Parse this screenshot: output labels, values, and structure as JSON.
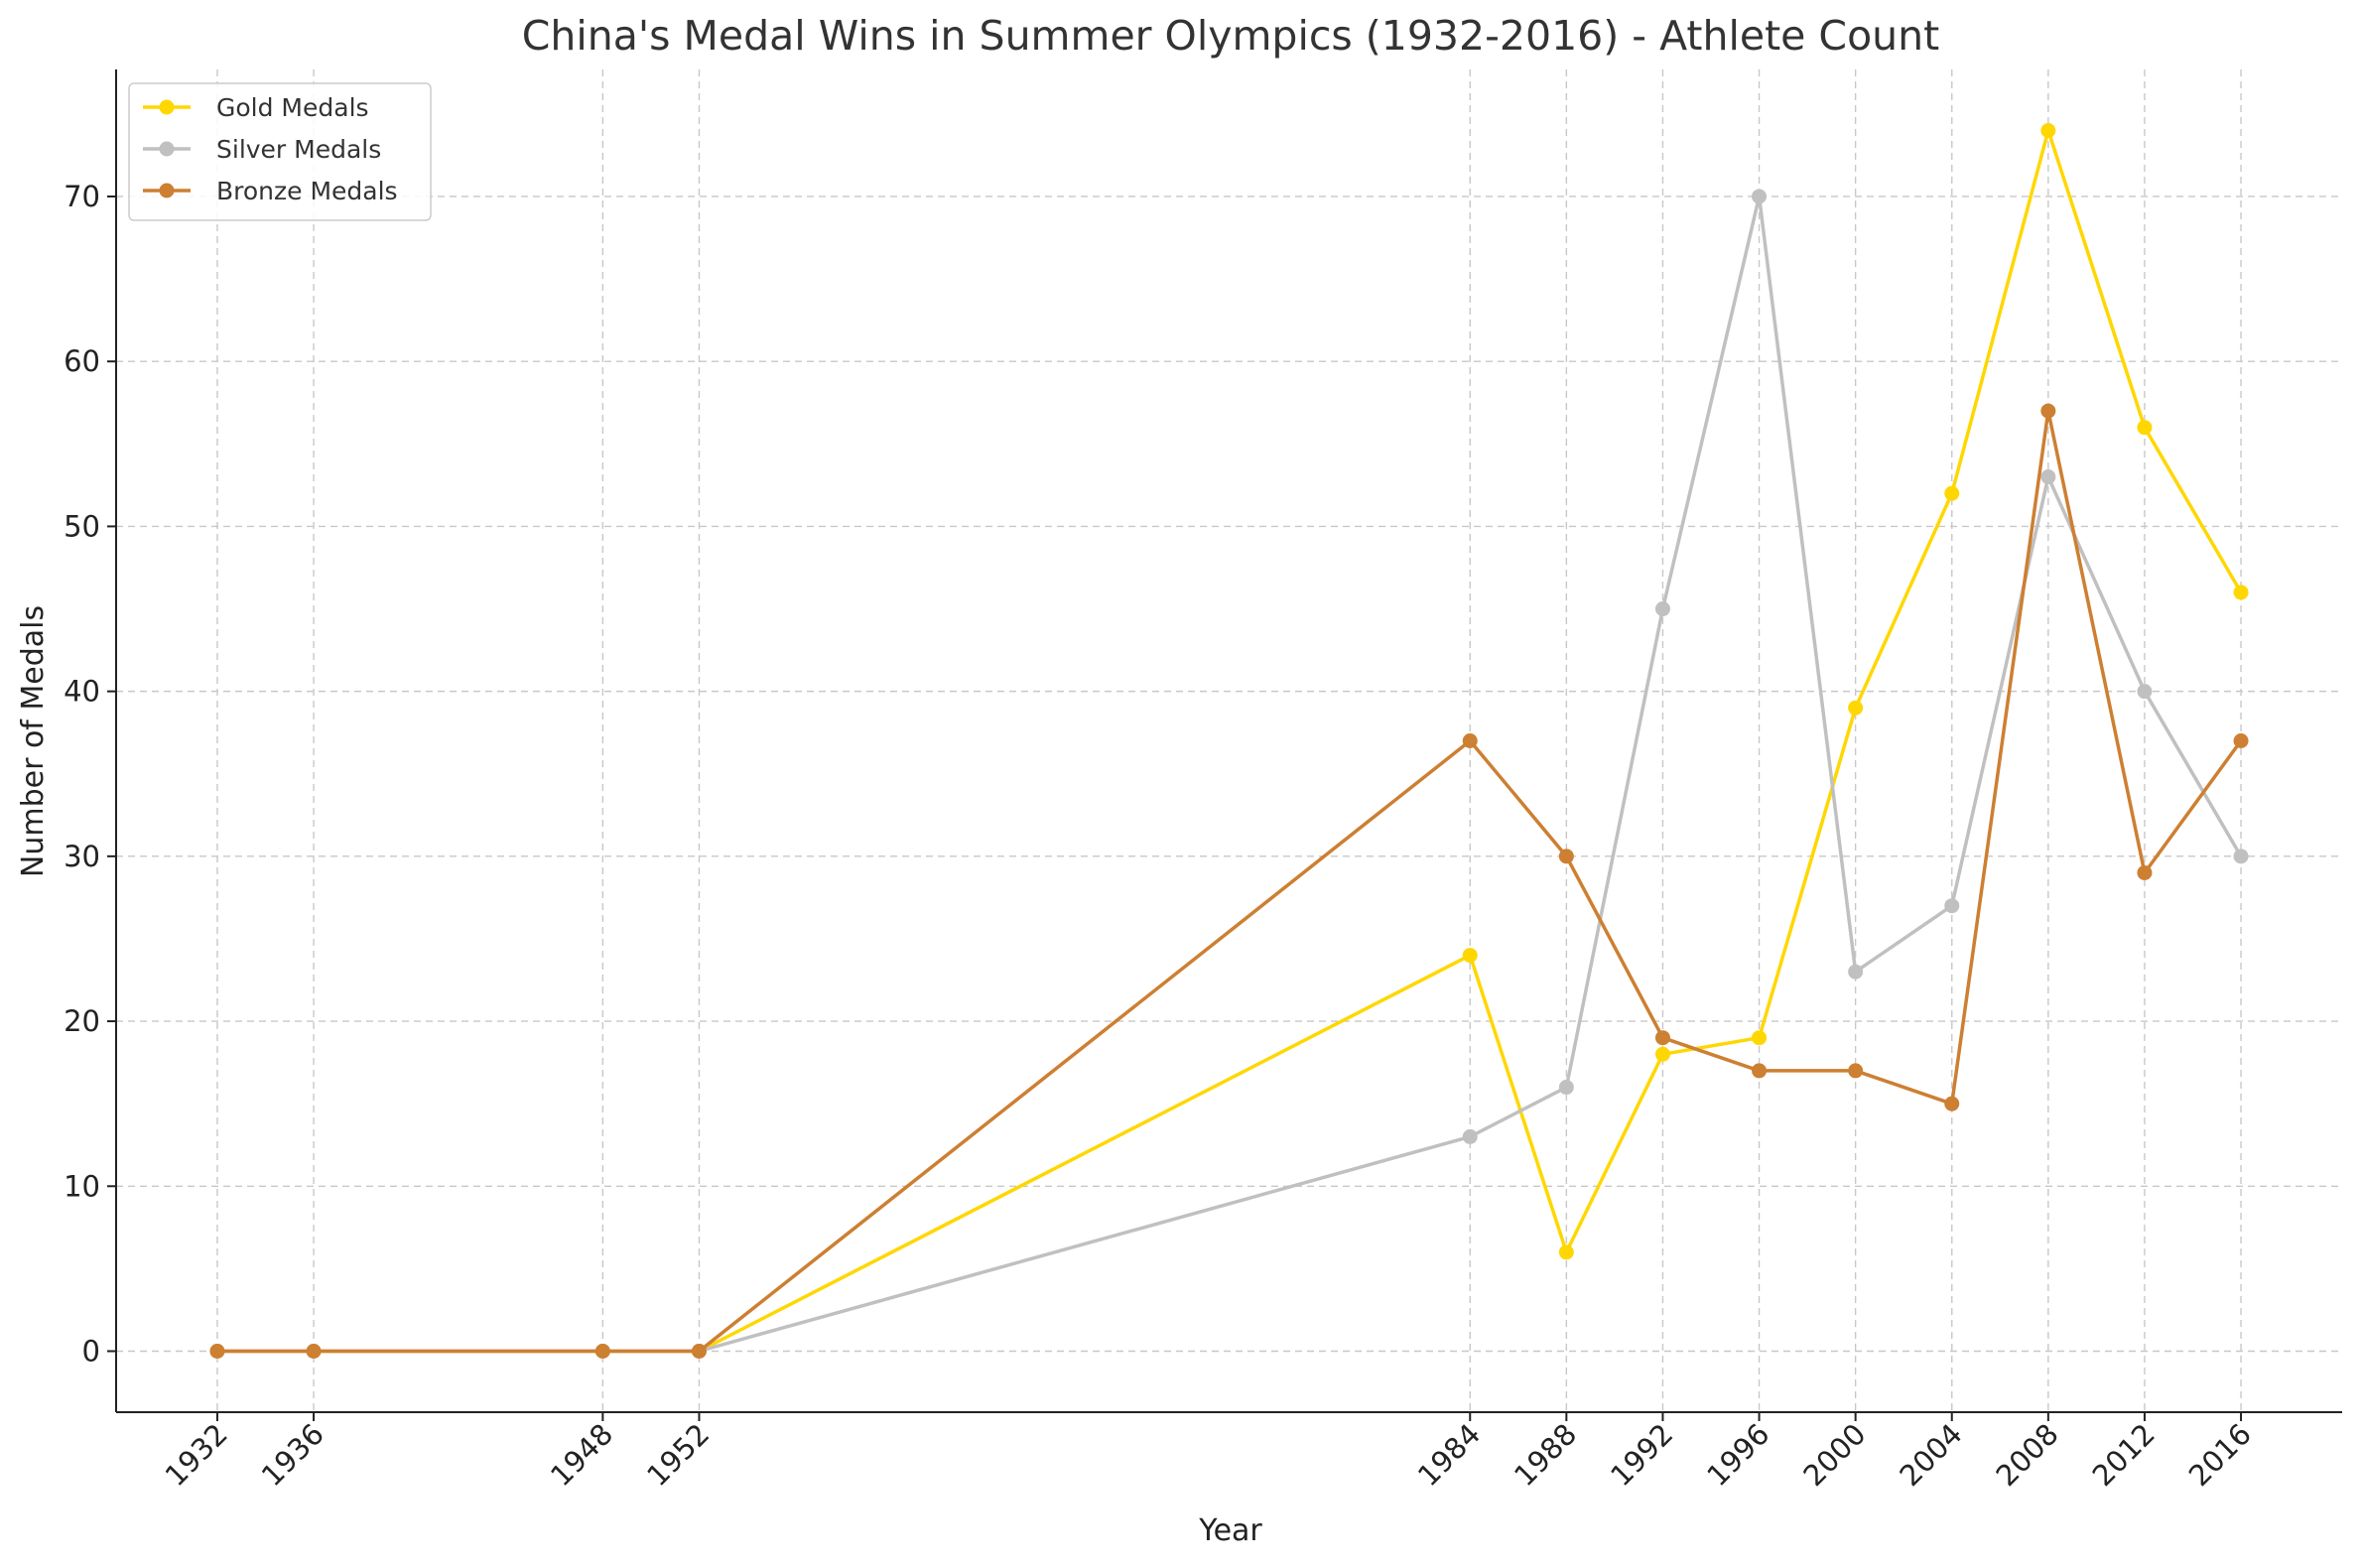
{
  "chart_data": {
    "type": "line",
    "title": "China's Medal Wins in Summer Olympics (1932-2016) - Athlete Count",
    "xlabel": "Year",
    "ylabel": "Number of Medals",
    "x": [
      1932,
      1936,
      1948,
      1952,
      1984,
      1988,
      1992,
      1996,
      2000,
      2004,
      2008,
      2012,
      2016
    ],
    "x_tick_labels": [
      "1932",
      "1936",
      "1948",
      "1952",
      "1984",
      "1988",
      "1992",
      "1996",
      "2000",
      "2004",
      "2008",
      "2012",
      "2016"
    ],
    "yticks": [
      0,
      10,
      20,
      30,
      40,
      50,
      60,
      70
    ],
    "xlim": [
      1927.8,
      2020.2
    ],
    "ylim": [
      -3.7,
      77.7
    ],
    "grid": true,
    "legend_position": "top-left",
    "series": [
      {
        "name": "Gold Medals",
        "color": "#FFD700",
        "values": [
          0,
          0,
          0,
          0,
          24,
          6,
          18,
          19,
          39,
          52,
          74,
          56,
          46
        ]
      },
      {
        "name": "Silver Medals",
        "color": "#C0C0C0",
        "values": [
          0,
          0,
          0,
          0,
          13,
          16,
          45,
          70,
          23,
          27,
          53,
          40,
          30
        ]
      },
      {
        "name": "Bronze Medals",
        "color": "#CD7F32",
        "values": [
          0,
          0,
          0,
          0,
          37,
          30,
          19,
          17,
          17,
          15,
          57,
          29,
          37
        ]
      }
    ]
  }
}
